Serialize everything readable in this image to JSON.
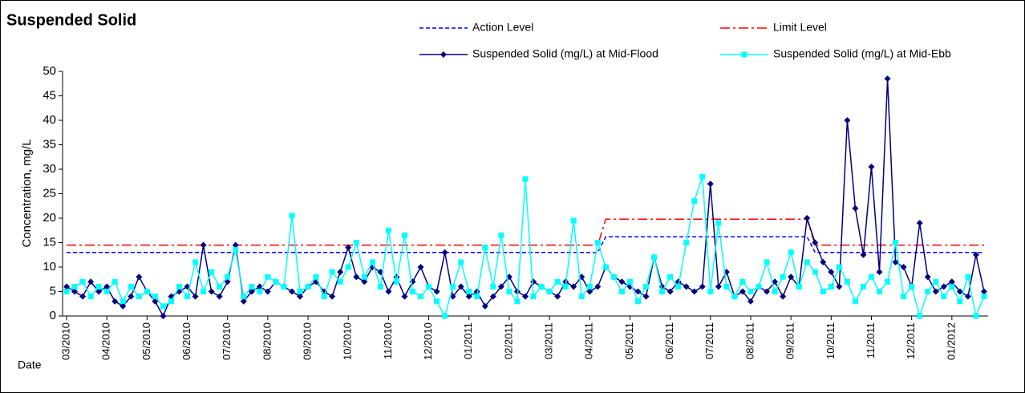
{
  "chart_data": {
    "type": "line",
    "title": "Suspended Solid",
    "y_label": "Concentration, mg/L",
    "x_label": "Date",
    "categories": [
      "03/2010",
      null,
      null,
      null,
      null,
      "04/2010",
      null,
      null,
      null,
      null,
      "05/2010",
      null,
      null,
      null,
      null,
      "06/2010",
      null,
      null,
      null,
      null,
      "07/2010",
      null,
      null,
      null,
      null,
      "08/2010",
      null,
      null,
      null,
      null,
      "09/2010",
      null,
      null,
      null,
      null,
      "10/2010",
      null,
      null,
      null,
      null,
      "11/2010",
      null,
      null,
      null,
      null,
      "12/2010",
      null,
      null,
      null,
      null,
      "01/2011",
      null,
      null,
      null,
      null,
      "02/2011",
      null,
      null,
      null,
      null,
      "03/2011",
      null,
      null,
      null,
      null,
      "04/2011",
      null,
      null,
      null,
      null,
      "05/2011",
      null,
      null,
      null,
      null,
      "06/2011",
      null,
      null,
      null,
      null,
      "07/2011",
      null,
      null,
      null,
      null,
      "08/2011",
      null,
      null,
      null,
      null,
      "09/2011",
      null,
      null,
      null,
      null,
      "10/2011",
      null,
      null,
      null,
      null,
      "11/2011",
      null,
      null,
      null,
      null,
      "12/2011",
      null,
      null,
      null,
      null,
      "01/2012",
      null,
      null,
      null,
      null
    ],
    "ylim": [
      0,
      50
    ],
    "yticks": [
      0,
      5,
      10,
      15,
      20,
      25,
      30,
      35,
      40,
      45,
      50
    ],
    "grid": false,
    "series": [
      {
        "name": "Action Level",
        "color": "#0000ff",
        "dash": "dashed",
        "marker": null,
        "values": [
          13,
          13,
          13,
          13,
          13,
          13,
          13,
          13,
          13,
          13,
          13,
          13,
          13,
          13,
          13,
          13,
          13,
          13,
          13,
          13,
          13,
          13,
          13,
          13,
          13,
          13,
          13,
          13,
          13,
          13,
          13,
          13,
          13,
          13,
          13,
          13,
          13,
          13,
          13,
          13,
          13,
          13,
          13,
          13,
          13,
          13,
          13,
          13,
          13,
          13,
          13,
          13,
          13,
          13,
          13,
          13,
          13,
          13,
          13,
          13,
          13,
          13,
          13,
          13,
          13,
          13,
          13,
          16.2,
          16.2,
          16.2,
          16.2,
          16.2,
          16.2,
          16.2,
          16.2,
          16.2,
          16.2,
          16.2,
          16.2,
          16.2,
          16.2,
          16.2,
          16.2,
          16.2,
          16.2,
          16.2,
          16.2,
          16.2,
          16.2,
          16.2,
          16.2,
          16.2,
          16.2,
          13,
          13,
          13,
          13,
          13,
          13,
          13,
          13,
          13,
          13,
          13,
          13,
          13,
          13,
          13,
          13,
          13,
          13,
          13,
          13,
          13,
          13
        ]
      },
      {
        "name": "Limit Level",
        "color": "#ff0000",
        "dash": "dash-dot",
        "marker": null,
        "values": [
          14.5,
          14.5,
          14.5,
          14.5,
          14.5,
          14.5,
          14.5,
          14.5,
          14.5,
          14.5,
          14.5,
          14.5,
          14.5,
          14.5,
          14.5,
          14.5,
          14.5,
          14.5,
          14.5,
          14.5,
          14.5,
          14.5,
          14.5,
          14.5,
          14.5,
          14.5,
          14.5,
          14.5,
          14.5,
          14.5,
          14.5,
          14.5,
          14.5,
          14.5,
          14.5,
          14.5,
          14.5,
          14.5,
          14.5,
          14.5,
          14.5,
          14.5,
          14.5,
          14.5,
          14.5,
          14.5,
          14.5,
          14.5,
          14.5,
          14.5,
          14.5,
          14.5,
          14.5,
          14.5,
          14.5,
          14.5,
          14.5,
          14.5,
          14.5,
          14.5,
          14.5,
          14.5,
          14.5,
          14.5,
          14.5,
          14.5,
          14.5,
          19.8,
          19.8,
          19.8,
          19.8,
          19.8,
          19.8,
          19.8,
          19.8,
          19.8,
          19.8,
          19.8,
          19.8,
          19.8,
          19.8,
          19.8,
          19.8,
          19.8,
          19.8,
          19.8,
          19.8,
          19.8,
          19.8,
          19.8,
          19.8,
          19.8,
          19.8,
          14.5,
          14.5,
          14.5,
          14.5,
          14.5,
          14.5,
          14.5,
          14.5,
          14.5,
          14.5,
          14.5,
          14.5,
          14.5,
          14.5,
          14.5,
          14.5,
          14.5,
          14.5,
          14.5,
          14.5,
          14.5,
          14.5
        ]
      },
      {
        "name": "Suspended Solid (mg/L) at Mid-Flood",
        "color": "#000080",
        "dash": "solid",
        "marker": "diamond",
        "values": [
          6,
          5,
          4,
          7,
          5,
          6,
          3,
          2,
          4,
          8,
          5,
          3,
          0,
          4,
          5,
          6,
          4,
          14.5,
          5,
          4,
          7,
          14.5,
          3,
          5,
          6,
          5,
          7,
          6,
          5,
          4,
          6,
          7,
          5,
          4,
          9,
          14,
          8,
          7,
          10,
          9,
          5,
          8,
          4,
          7,
          10,
          6,
          5,
          13,
          4,
          6,
          4,
          5,
          2,
          4,
          6,
          8,
          5,
          4,
          7,
          6,
          5,
          4,
          7,
          6,
          8,
          5,
          6,
          10,
          8,
          7,
          6,
          5,
          4,
          12,
          6,
          5,
          7,
          6,
          5,
          6,
          27,
          6,
          9,
          4,
          5,
          3,
          6,
          5,
          7,
          4,
          8,
          6,
          20,
          15,
          11,
          9,
          6,
          40,
          22,
          12.5,
          30.5,
          9,
          48.5,
          11,
          10,
          6,
          19,
          8,
          5,
          6,
          7,
          5,
          4,
          12.5,
          5
        ]
      },
      {
        "name": "Suspended Solid (mg/L) at Mid-Ebb",
        "color": "#00ffff",
        "dash": "solid",
        "marker": "square",
        "values": [
          5,
          6,
          7,
          4,
          6,
          5,
          7,
          3,
          6,
          4,
          5,
          4,
          2,
          3,
          6,
          4,
          11,
          5,
          9,
          6,
          8,
          13.5,
          4,
          6,
          5,
          8,
          7,
          6,
          20.5,
          5,
          6,
          8,
          4,
          9,
          7,
          10,
          15,
          8,
          11,
          6,
          17.5,
          7,
          16.5,
          5,
          4,
          6,
          3,
          0,
          6,
          11,
          5,
          4,
          14,
          6,
          16.5,
          5,
          3,
          28,
          4,
          6,
          5,
          7,
          6,
          19.5,
          4,
          6,
          15,
          10,
          8,
          5,
          7,
          3,
          6,
          12,
          5,
          8,
          6,
          15,
          23.5,
          28.5,
          5,
          19,
          6,
          4,
          7,
          5,
          6,
          11,
          5,
          8,
          13,
          6,
          11,
          9,
          5,
          6,
          10,
          7,
          3,
          6,
          8,
          5,
          7,
          15,
          4,
          6,
          0,
          5,
          7,
          4,
          6,
          3,
          8,
          0,
          4
        ]
      }
    ]
  }
}
